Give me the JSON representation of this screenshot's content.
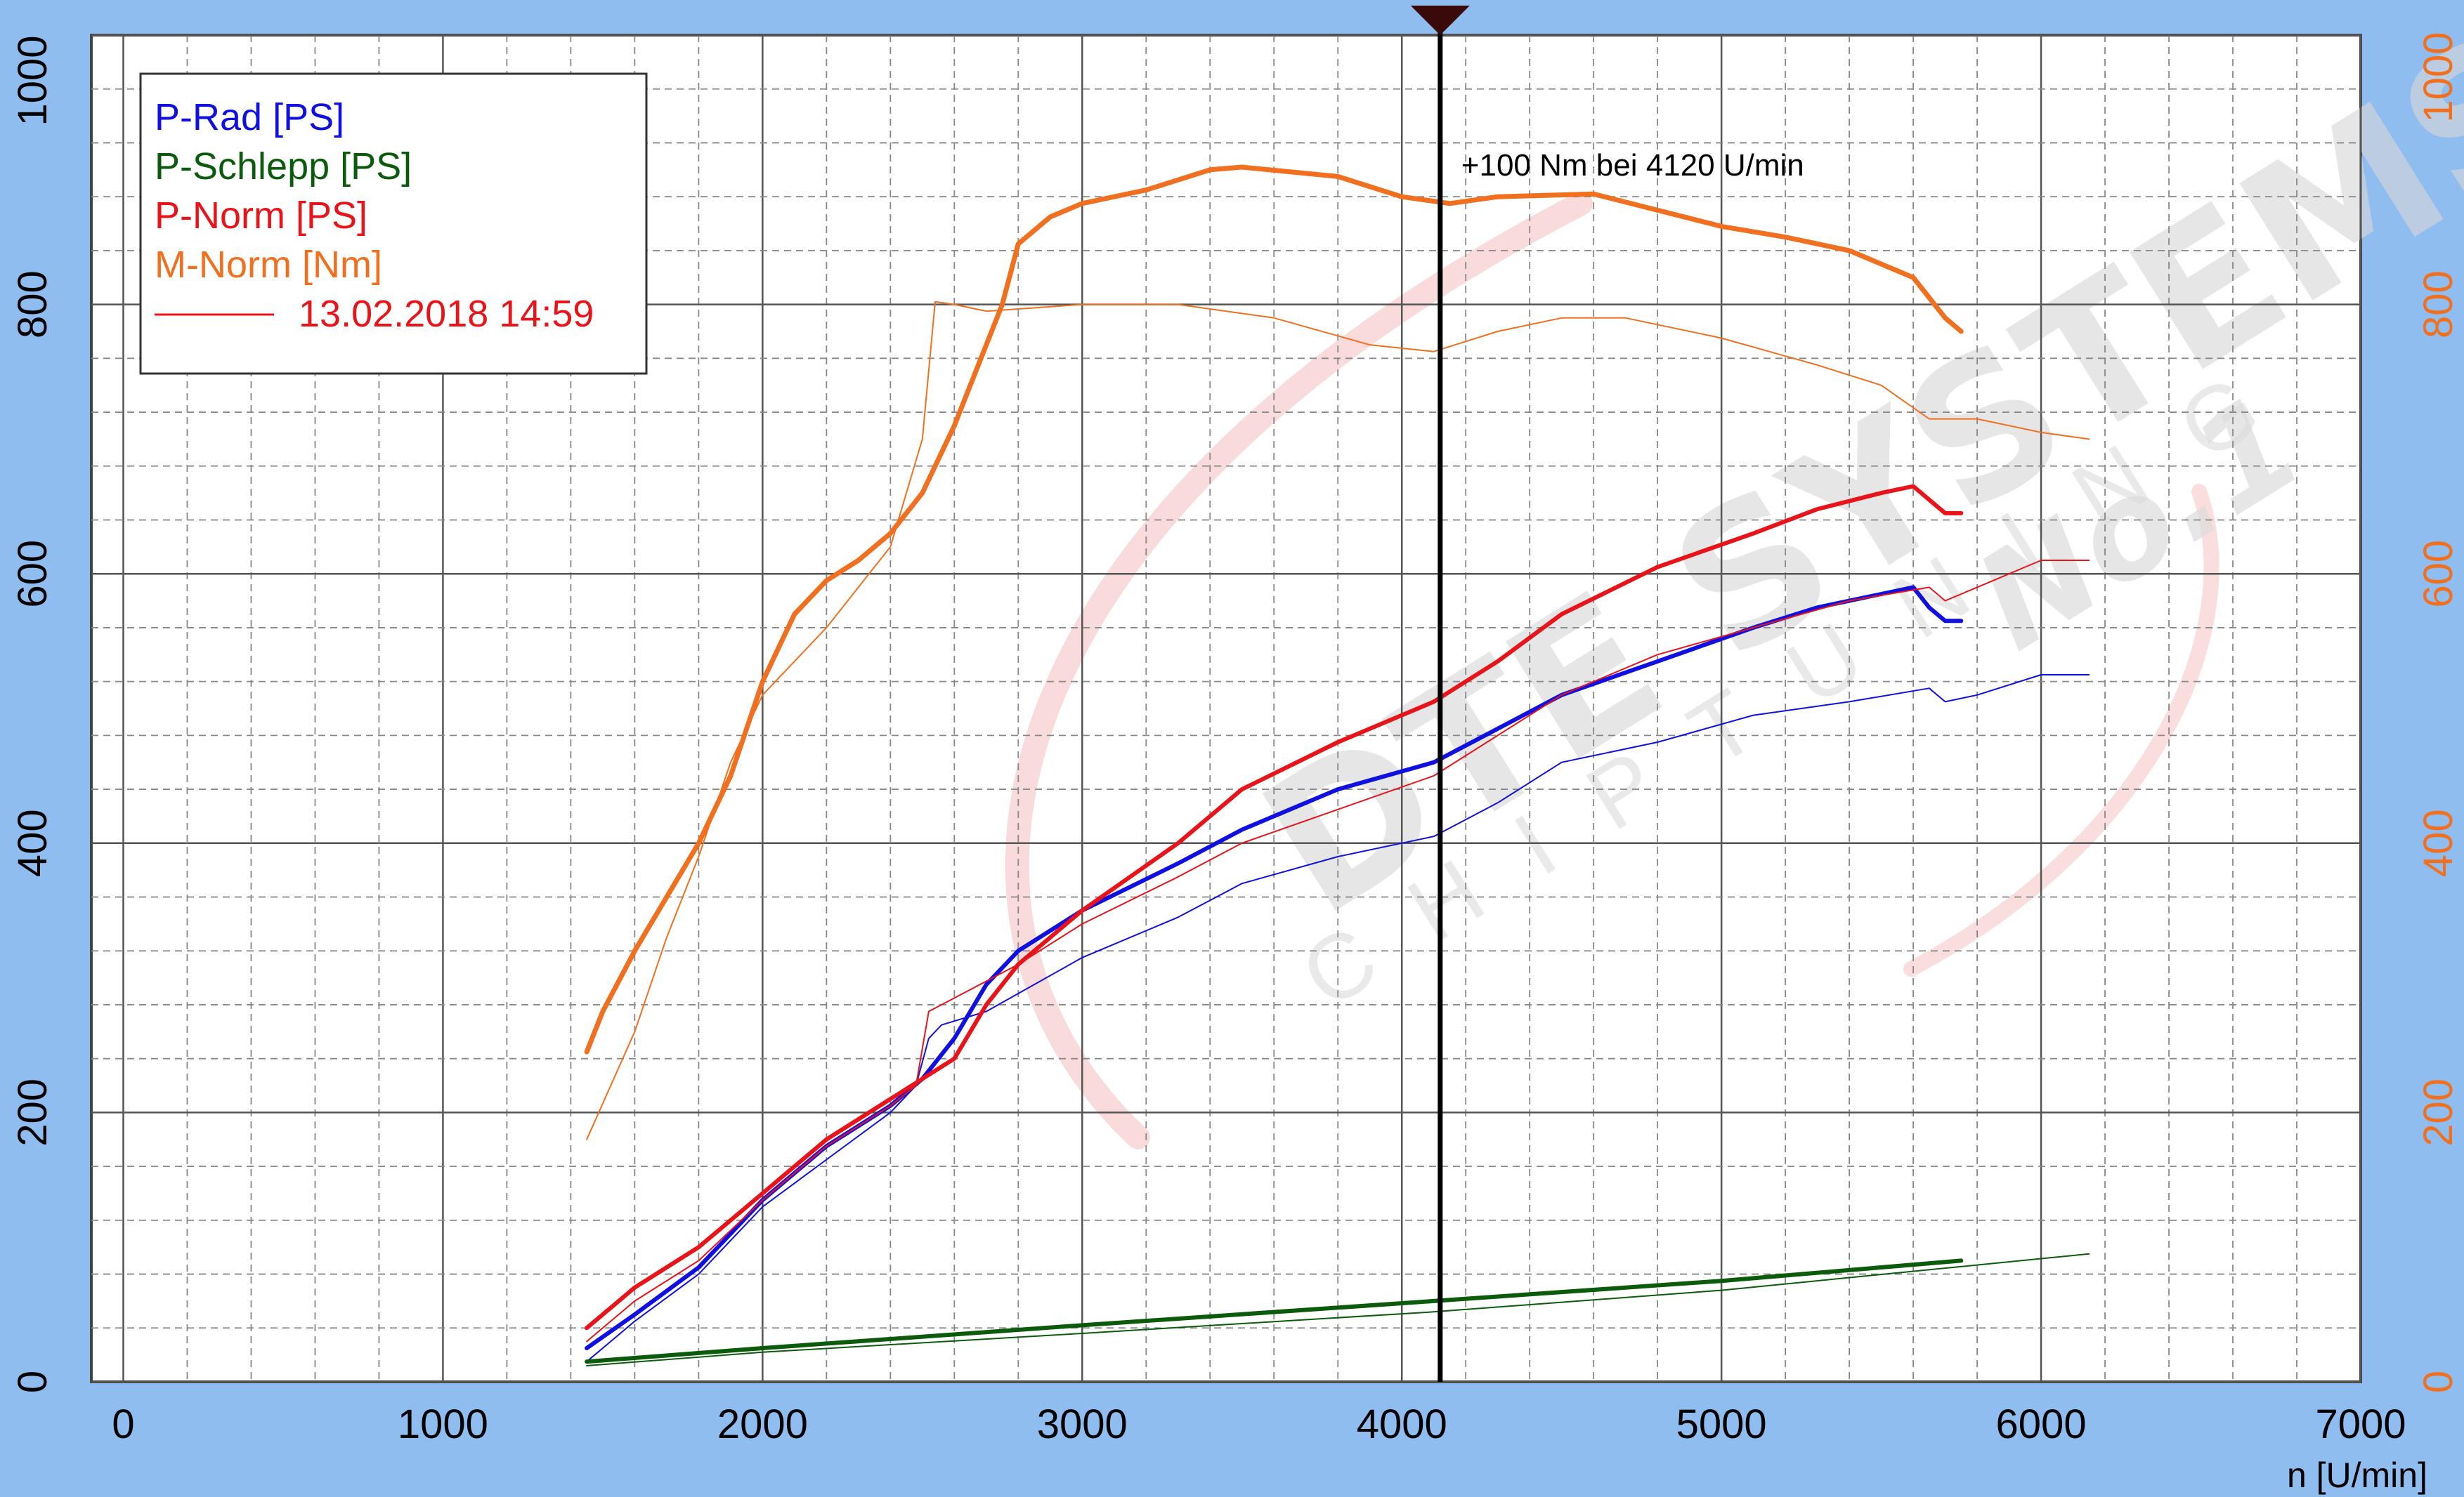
{
  "colors": {
    "background": "#8fbdf0",
    "plot_bg": "#ffffff",
    "p_rad": "#1010e0",
    "p_schlepp": "#0c5a0c",
    "p_norm": "#e8141a",
    "m_norm": "#f07020",
    "axis_left": "#000000",
    "axis_right": "#f07020"
  },
  "watermark": {
    "brand": "DTE SYSTEMS",
    "tagline": "CHIPTUNING",
    "badge": "No.1"
  },
  "chart_data": {
    "type": "line",
    "xlabel": "n [U/min]",
    "ylabel": "",
    "xlim": [
      -100,
      7000
    ],
    "ylim": [
      0,
      1000
    ],
    "y2lim": [
      0,
      1000
    ],
    "x_ticks": [
      "0",
      "1000",
      "2000",
      "3000",
      "4000",
      "5000",
      "6000",
      "7000"
    ],
    "y_ticks": [
      "0",
      "200",
      "400",
      "600",
      "800",
      "1000"
    ],
    "y2_ticks": [
      "0",
      "200",
      "400",
      "600",
      "800"
    ],
    "grid": true,
    "legend_position": "top-left",
    "legend": [
      {
        "label": "P-Rad [PS]",
        "color": "#1010e0",
        "line": false
      },
      {
        "label": "P-Schlepp [PS]",
        "color": "#0c5a0c",
        "line": false
      },
      {
        "label": "P-Norm [PS]",
        "color": "#e8141a",
        "line": false
      },
      {
        "label": "M-Norm [Nm]",
        "color": "#f07020",
        "line": false
      },
      {
        "label": "13.02.2018 14:59",
        "color": "#e8141a",
        "line": true
      }
    ],
    "annotation": {
      "text": "+100 Nm bei 4120 U/min",
      "x": 4120
    },
    "series": [
      {
        "name": "P-Rad [PS]",
        "color": "#1010e0",
        "width": 6,
        "points": [
          [
            1450,
            25
          ],
          [
            1600,
            50
          ],
          [
            1800,
            85
          ],
          [
            2000,
            135
          ],
          [
            2200,
            175
          ],
          [
            2400,
            205
          ],
          [
            2500,
            225
          ],
          [
            2600,
            255
          ],
          [
            2700,
            295
          ],
          [
            2800,
            320
          ],
          [
            3000,
            350
          ],
          [
            3300,
            385
          ],
          [
            3500,
            410
          ],
          [
            3800,
            440
          ],
          [
            4100,
            460
          ],
          [
            4300,
            485
          ],
          [
            4500,
            510
          ],
          [
            4800,
            535
          ],
          [
            5100,
            560
          ],
          [
            5300,
            575
          ],
          [
            5500,
            585
          ],
          [
            5600,
            590
          ],
          [
            5650,
            575
          ],
          [
            5700,
            565
          ],
          [
            5750,
            565
          ]
        ]
      },
      {
        "name": "P-Rad [PS]",
        "color": "#1010e0",
        "width": 2,
        "points": [
          [
            1450,
            15
          ],
          [
            1600,
            45
          ],
          [
            1800,
            80
          ],
          [
            2000,
            130
          ],
          [
            2200,
            165
          ],
          [
            2400,
            200
          ],
          [
            2480,
            220
          ],
          [
            2520,
            255
          ],
          [
            2560,
            265
          ],
          [
            2700,
            275
          ],
          [
            3000,
            315
          ],
          [
            3300,
            345
          ],
          [
            3500,
            370
          ],
          [
            3800,
            390
          ],
          [
            4100,
            405
          ],
          [
            4300,
            430
          ],
          [
            4500,
            460
          ],
          [
            4800,
            475
          ],
          [
            5100,
            495
          ],
          [
            5400,
            505
          ],
          [
            5650,
            515
          ],
          [
            5700,
            505
          ],
          [
            5800,
            510
          ],
          [
            6000,
            525
          ],
          [
            6150,
            525
          ]
        ]
      },
      {
        "name": "P-Schlepp [PS]",
        "color": "#0c5a0c",
        "width": 6,
        "points": [
          [
            1450,
            15
          ],
          [
            2000,
            25
          ],
          [
            3000,
            42
          ],
          [
            4100,
            60
          ],
          [
            5000,
            75
          ],
          [
            5750,
            90
          ]
        ]
      },
      {
        "name": "P-Schlepp [PS]",
        "color": "#0c5a0c",
        "width": 2,
        "points": [
          [
            1450,
            12
          ],
          [
            2000,
            22
          ],
          [
            3000,
            36
          ],
          [
            4100,
            52
          ],
          [
            5000,
            68
          ],
          [
            6150,
            95
          ]
        ]
      },
      {
        "name": "P-Norm [PS]",
        "color": "#e8141a",
        "width": 6,
        "points": [
          [
            1450,
            40
          ],
          [
            1600,
            70
          ],
          [
            1800,
            100
          ],
          [
            2000,
            140
          ],
          [
            2200,
            180
          ],
          [
            2400,
            210
          ],
          [
            2600,
            240
          ],
          [
            2700,
            280
          ],
          [
            2800,
            310
          ],
          [
            3000,
            350
          ],
          [
            3300,
            400
          ],
          [
            3500,
            440
          ],
          [
            3800,
            475
          ],
          [
            4100,
            505
          ],
          [
            4300,
            535
          ],
          [
            4500,
            570
          ],
          [
            4800,
            605
          ],
          [
            5100,
            630
          ],
          [
            5300,
            648
          ],
          [
            5500,
            660
          ],
          [
            5600,
            665
          ],
          [
            5650,
            655
          ],
          [
            5700,
            645
          ],
          [
            5750,
            645
          ]
        ]
      },
      {
        "name": "P-Norm [PS]",
        "color": "#e8141a",
        "width": 2,
        "points": [
          [
            1450,
            30
          ],
          [
            1600,
            60
          ],
          [
            1800,
            90
          ],
          [
            2000,
            135
          ],
          [
            2200,
            175
          ],
          [
            2400,
            205
          ],
          [
            2480,
            220
          ],
          [
            2520,
            275
          ],
          [
            2600,
            285
          ],
          [
            2800,
            310
          ],
          [
            3000,
            340
          ],
          [
            3300,
            375
          ],
          [
            3500,
            400
          ],
          [
            3800,
            425
          ],
          [
            4100,
            450
          ],
          [
            4300,
            480
          ],
          [
            4500,
            510
          ],
          [
            4800,
            540
          ],
          [
            5100,
            560
          ],
          [
            5400,
            580
          ],
          [
            5650,
            590
          ],
          [
            5700,
            580
          ],
          [
            5800,
            590
          ],
          [
            6000,
            610
          ],
          [
            6150,
            610
          ]
        ]
      },
      {
        "name": "M-Norm [Nm]",
        "color": "#f07020",
        "width": 7,
        "points": [
          [
            1450,
            245
          ],
          [
            1500,
            275
          ],
          [
            1600,
            320
          ],
          [
            1700,
            360
          ],
          [
            1800,
            400
          ],
          [
            1900,
            450
          ],
          [
            2000,
            520
          ],
          [
            2100,
            570
          ],
          [
            2200,
            595
          ],
          [
            2300,
            610
          ],
          [
            2400,
            630
          ],
          [
            2500,
            660
          ],
          [
            2600,
            710
          ],
          [
            2700,
            770
          ],
          [
            2750,
            800
          ],
          [
            2800,
            845
          ],
          [
            2900,
            865
          ],
          [
            3000,
            875
          ],
          [
            3200,
            885
          ],
          [
            3400,
            900
          ],
          [
            3500,
            902
          ],
          [
            3800,
            895
          ],
          [
            4000,
            880
          ],
          [
            4150,
            875
          ],
          [
            4300,
            880
          ],
          [
            4600,
            882
          ],
          [
            5000,
            858
          ],
          [
            5200,
            850
          ],
          [
            5400,
            840
          ],
          [
            5600,
            820
          ],
          [
            5700,
            790
          ],
          [
            5750,
            780
          ]
        ]
      },
      {
        "name": "M-Norm [Nm]",
        "color": "#f07020",
        "width": 2,
        "points": [
          [
            1450,
            180
          ],
          [
            1600,
            260
          ],
          [
            1700,
            330
          ],
          [
            1800,
            390
          ],
          [
            1900,
            460
          ],
          [
            2000,
            510
          ],
          [
            2200,
            560
          ],
          [
            2400,
            620
          ],
          [
            2500,
            700
          ],
          [
            2540,
            802
          ],
          [
            2600,
            800
          ],
          [
            2700,
            795
          ],
          [
            3000,
            800
          ],
          [
            3300,
            800
          ],
          [
            3600,
            790
          ],
          [
            3900,
            770
          ],
          [
            4100,
            765
          ],
          [
            4300,
            780
          ],
          [
            4500,
            790
          ],
          [
            4700,
            790
          ],
          [
            5000,
            775
          ],
          [
            5300,
            755
          ],
          [
            5500,
            740
          ],
          [
            5650,
            715
          ],
          [
            5800,
            715
          ],
          [
            6000,
            705
          ],
          [
            6150,
            700
          ]
        ]
      }
    ]
  }
}
